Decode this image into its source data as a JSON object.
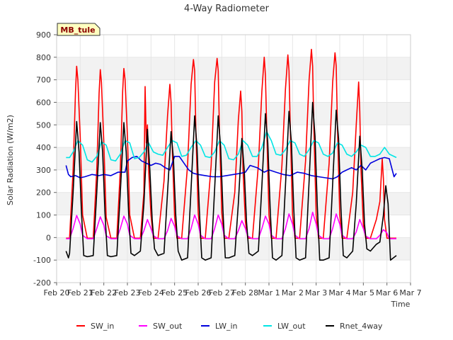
{
  "chart_data": {
    "type": "line",
    "title": "4-Way Radiometer",
    "xlabel": "Time",
    "ylabel": "Solar Radiation (W/m2)",
    "site_label": "MB_tule",
    "xlim": [
      0,
      15
    ],
    "ylim": [
      -200,
      900
    ],
    "y_ticks": [
      -200,
      -100,
      0,
      100,
      200,
      300,
      400,
      500,
      600,
      700,
      800,
      900
    ],
    "x_ticks": [
      {
        "pos": 0,
        "label": "Feb 20"
      },
      {
        "pos": 1,
        "label": "Feb 21"
      },
      {
        "pos": 2,
        "label": "Feb 22"
      },
      {
        "pos": 3,
        "label": "Feb 23"
      },
      {
        "pos": 4,
        "label": "Feb 24"
      },
      {
        "pos": 5,
        "label": "Feb 25"
      },
      {
        "pos": 6,
        "label": "Feb 26"
      },
      {
        "pos": 7,
        "label": "Feb 27"
      },
      {
        "pos": 8,
        "label": "Feb 28"
      },
      {
        "pos": 9,
        "label": "Mar 1"
      },
      {
        "pos": 10,
        "label": "Mar 2"
      },
      {
        "pos": 11,
        "label": "Mar 3"
      },
      {
        "pos": 12,
        "label": "Mar 4"
      },
      {
        "pos": 13,
        "label": "Mar 5"
      },
      {
        "pos": 14,
        "label": "Mar 6"
      },
      {
        "pos": 15,
        "label": "Mar 7"
      }
    ],
    "series": [
      {
        "name": "SW_in",
        "color": "#ff0000",
        "x": [
          0.4,
          0.55,
          0.7,
          0.8,
          0.85,
          0.9,
          1.0,
          1.1,
          1.3,
          1.55,
          1.7,
          1.8,
          1.85,
          1.9,
          2.0,
          2.1,
          2.3,
          2.55,
          2.7,
          2.8,
          2.85,
          2.9,
          3.0,
          3.1,
          3.3,
          3.55,
          3.7,
          3.75,
          3.8,
          3.85,
          3.9,
          4.0,
          4.1,
          4.3,
          4.55,
          4.7,
          4.8,
          4.85,
          4.9,
          5.0,
          5.1,
          5.3,
          5.55,
          5.7,
          5.8,
          5.85,
          5.9,
          6.0,
          6.1,
          6.3,
          6.55,
          6.7,
          6.8,
          6.85,
          6.9,
          7.0,
          7.1,
          7.3,
          7.55,
          7.7,
          7.8,
          7.85,
          7.9,
          8.0,
          8.1,
          8.3,
          8.55,
          8.7,
          8.8,
          8.85,
          8.9,
          9.0,
          9.1,
          9.3,
          9.55,
          9.7,
          9.8,
          9.85,
          9.9,
          10.0,
          10.1,
          10.3,
          10.55,
          10.7,
          10.8,
          10.85,
          10.9,
          11.0,
          11.1,
          11.3,
          11.55,
          11.7,
          11.8,
          11.85,
          11.9,
          12.0,
          12.1,
          12.3,
          12.55,
          12.7,
          12.8,
          12.85,
          12.9,
          13.0,
          13.1,
          13.3,
          13.55,
          13.7,
          13.8,
          13.85,
          13.9,
          14.0,
          14.1,
          14.4
        ],
        "y": [
          -3,
          -3,
          300,
          650,
          760,
          700,
          450,
          100,
          -3,
          -3,
          300,
          640,
          745,
          690,
          420,
          90,
          -3,
          -3,
          300,
          650,
          750,
          700,
          450,
          100,
          -3,
          -3,
          200,
          670,
          420,
          500,
          300,
          100,
          -3,
          -3,
          250,
          540,
          680,
          600,
          400,
          90,
          -3,
          -3,
          320,
          680,
          790,
          740,
          480,
          110,
          -3,
          -3,
          320,
          690,
          795,
          740,
          480,
          110,
          -3,
          -3,
          200,
          520,
          650,
          560,
          300,
          70,
          -3,
          -3,
          320,
          650,
          800,
          720,
          500,
          100,
          -3,
          -3,
          320,
          660,
          810,
          740,
          500,
          100,
          -3,
          -3,
          340,
          700,
          835,
          760,
          500,
          100,
          -3,
          -3,
          330,
          690,
          820,
          760,
          500,
          100,
          -3,
          -3,
          200,
          500,
          690,
          560,
          300,
          60,
          -3,
          -3,
          80,
          160,
          350,
          260,
          80,
          -3,
          -3,
          -3
        ]
      },
      {
        "name": "SW_out",
        "color": "#ff00ff",
        "x": [
          0.4,
          0.55,
          0.7,
          0.85,
          1.0,
          1.1,
          1.3,
          1.55,
          1.7,
          1.85,
          2.0,
          2.1,
          2.3,
          2.55,
          2.7,
          2.85,
          3.0,
          3.1,
          3.3,
          3.55,
          3.7,
          3.85,
          4.0,
          4.1,
          4.3,
          4.55,
          4.7,
          4.85,
          5.0,
          5.1,
          5.3,
          5.55,
          5.7,
          5.85,
          6.0,
          6.1,
          6.3,
          6.55,
          6.7,
          6.85,
          7.0,
          7.1,
          7.3,
          7.55,
          7.7,
          7.85,
          8.0,
          8.1,
          8.3,
          8.55,
          8.7,
          8.85,
          9.0,
          9.1,
          9.3,
          9.55,
          9.7,
          9.85,
          10.0,
          10.1,
          10.3,
          10.55,
          10.7,
          10.85,
          11.0,
          11.1,
          11.3,
          11.55,
          11.7,
          11.85,
          12.0,
          12.1,
          12.3,
          12.55,
          12.7,
          12.85,
          13.0,
          13.1,
          13.3,
          13.55,
          13.7,
          13.85,
          14.0,
          14.1,
          14.4
        ],
        "y": [
          -5,
          -5,
          40,
          98,
          60,
          10,
          -5,
          -5,
          40,
          92,
          55,
          8,
          -5,
          -5,
          40,
          95,
          60,
          10,
          -5,
          -5,
          30,
          80,
          40,
          8,
          -5,
          -5,
          30,
          85,
          50,
          8,
          -5,
          -5,
          40,
          100,
          60,
          10,
          -5,
          -5,
          40,
          100,
          60,
          10,
          -5,
          -5,
          30,
          75,
          40,
          6,
          -5,
          -5,
          40,
          95,
          60,
          10,
          -5,
          -5,
          40,
          105,
          60,
          10,
          -5,
          -5,
          40,
          112,
          60,
          10,
          -5,
          -5,
          40,
          105,
          60,
          10,
          -5,
          -5,
          25,
          80,
          40,
          6,
          -5,
          -5,
          10,
          35,
          20,
          -5,
          -5
        ]
      },
      {
        "name": "LW_in",
        "color": "#0000dd",
        "x": [
          0.4,
          0.5,
          0.6,
          0.8,
          1.0,
          1.2,
          1.5,
          1.8,
          2.0,
          2.3,
          2.6,
          2.9,
          3.0,
          3.2,
          3.4,
          3.6,
          3.8,
          4.0,
          4.2,
          4.4,
          4.6,
          4.8,
          5.0,
          5.2,
          5.4,
          5.6,
          5.8,
          6.0,
          6.3,
          6.6,
          6.9,
          7.2,
          7.5,
          7.8,
          8.0,
          8.2,
          8.5,
          8.8,
          9.0,
          9.3,
          9.6,
          9.9,
          10.2,
          10.5,
          10.8,
          11.1,
          11.4,
          11.7,
          11.9,
          12.1,
          12.3,
          12.5,
          12.7,
          12.9,
          13.1,
          13.3,
          13.5,
          13.7,
          13.9,
          14.1,
          14.3,
          14.4
        ],
        "y": [
          320,
          280,
          270,
          275,
          265,
          270,
          280,
          275,
          280,
          275,
          290,
          290,
          340,
          355,
          360,
          340,
          330,
          320,
          330,
          325,
          310,
          300,
          360,
          360,
          330,
          300,
          285,
          280,
          275,
          270,
          270,
          275,
          280,
          285,
          290,
          320,
          310,
          290,
          300,
          290,
          280,
          275,
          290,
          285,
          275,
          270,
          265,
          260,
          270,
          290,
          300,
          310,
          300,
          320,
          300,
          330,
          340,
          350,
          355,
          350,
          270,
          285
        ]
      },
      {
        "name": "LW_out",
        "color": "#00e5e5",
        "x": [
          0.4,
          0.55,
          0.7,
          0.9,
          1.1,
          1.3,
          1.5,
          1.7,
          1.9,
          2.1,
          2.3,
          2.5,
          2.7,
          2.9,
          3.1,
          3.3,
          3.5,
          3.7,
          3.9,
          4.1,
          4.3,
          4.5,
          4.7,
          4.9,
          5.1,
          5.3,
          5.5,
          5.7,
          5.9,
          6.1,
          6.3,
          6.5,
          6.7,
          6.9,
          7.1,
          7.3,
          7.5,
          7.7,
          7.9,
          8.1,
          8.3,
          8.5,
          8.7,
          8.9,
          9.1,
          9.3,
          9.5,
          9.7,
          9.9,
          10.1,
          10.3,
          10.5,
          10.7,
          10.9,
          11.1,
          11.3,
          11.5,
          11.7,
          11.9,
          12.1,
          12.3,
          12.5,
          12.7,
          12.9,
          13.1,
          13.3,
          13.5,
          13.7,
          13.9,
          14.1,
          14.4
        ],
        "y": [
          355,
          355,
          380,
          430,
          410,
          345,
          335,
          360,
          425,
          410,
          345,
          340,
          370,
          430,
          420,
          350,
          355,
          380,
          420,
          380,
          370,
          365,
          400,
          430,
          420,
          360,
          365,
          400,
          430,
          410,
          360,
          355,
          380,
          430,
          410,
          350,
          345,
          370,
          430,
          410,
          360,
          360,
          400,
          470,
          430,
          370,
          365,
          390,
          430,
          420,
          370,
          360,
          390,
          430,
          420,
          370,
          360,
          375,
          420,
          410,
          370,
          360,
          380,
          410,
          400,
          360,
          360,
          370,
          400,
          370,
          355
        ]
      },
      {
        "name": "Rnet_4way",
        "color": "#000000",
        "x": [
          0.4,
          0.5,
          0.55,
          0.7,
          0.85,
          0.95,
          1.05,
          1.15,
          1.3,
          1.55,
          1.7,
          1.85,
          1.95,
          2.05,
          2.15,
          2.3,
          2.55,
          2.7,
          2.85,
          2.95,
          3.05,
          3.15,
          3.3,
          3.55,
          3.7,
          3.85,
          3.95,
          4.05,
          4.15,
          4.3,
          4.55,
          4.7,
          4.85,
          4.95,
          5.05,
          5.15,
          5.3,
          5.55,
          5.7,
          5.85,
          5.95,
          6.05,
          6.15,
          6.3,
          6.55,
          6.7,
          6.85,
          6.95,
          7.05,
          7.15,
          7.3,
          7.55,
          7.7,
          7.85,
          7.95,
          8.05,
          8.15,
          8.3,
          8.55,
          8.7,
          8.85,
          8.95,
          9.05,
          9.15,
          9.3,
          9.55,
          9.7,
          9.85,
          9.95,
          10.05,
          10.15,
          10.3,
          10.55,
          10.7,
          10.85,
          10.95,
          11.05,
          11.15,
          11.3,
          11.55,
          11.7,
          11.85,
          11.95,
          12.05,
          12.15,
          12.3,
          12.55,
          12.7,
          12.85,
          12.95,
          13.05,
          13.15,
          13.3,
          13.55,
          13.7,
          13.85,
          13.95,
          14.05,
          14.15,
          14.4
        ],
        "y": [
          -60,
          -90,
          -70,
          200,
          515,
          380,
          120,
          -80,
          -85,
          -80,
          200,
          510,
          380,
          110,
          -80,
          -85,
          -80,
          200,
          510,
          380,
          110,
          -70,
          -80,
          -60,
          150,
          480,
          300,
          80,
          -50,
          -80,
          -70,
          200,
          470,
          350,
          100,
          -60,
          -100,
          -90,
          220,
          540,
          400,
          120,
          -90,
          -100,
          -90,
          220,
          540,
          400,
          120,
          -90,
          -90,
          -80,
          150,
          440,
          300,
          70,
          -70,
          -80,
          -60,
          230,
          550,
          420,
          130,
          -90,
          -100,
          -80,
          230,
          560,
          420,
          130,
          -90,
          -100,
          -90,
          250,
          600,
          450,
          140,
          -100,
          -100,
          -90,
          240,
          565,
          440,
          130,
          -80,
          -90,
          -60,
          150,
          450,
          300,
          60,
          -50,
          -60,
          -30,
          -20,
          100,
          230,
          150,
          -100,
          -80
        ]
      }
    ]
  }
}
